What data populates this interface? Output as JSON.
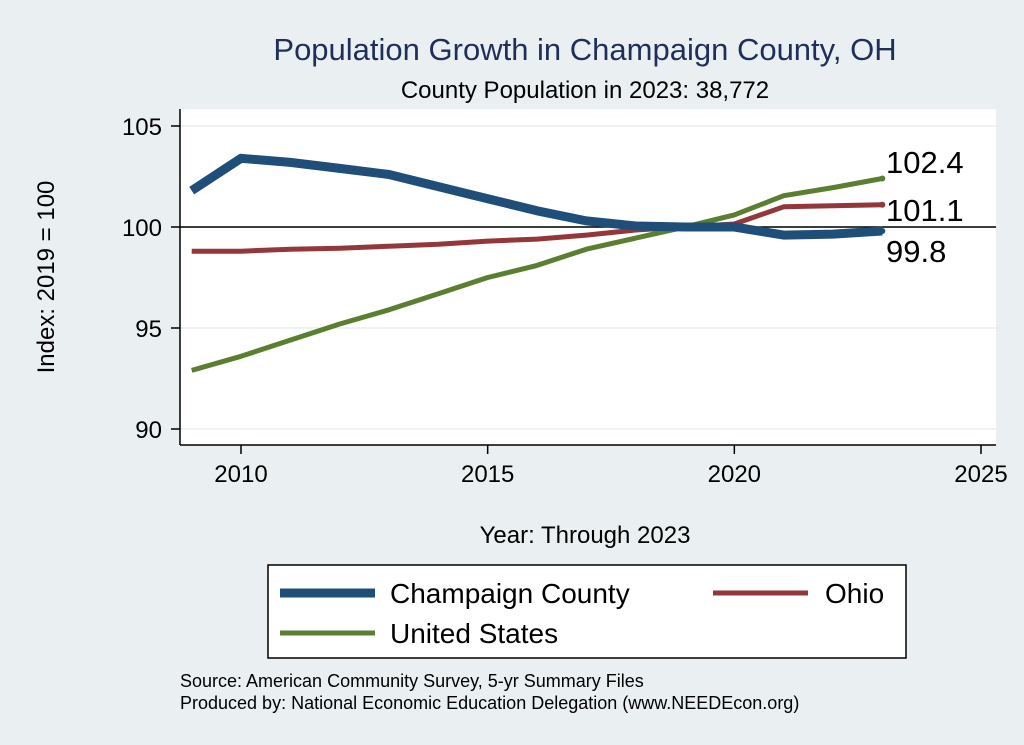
{
  "chart_data": {
    "type": "line",
    "title": "Population Growth in Champaign County, OH",
    "subtitle": "County Population in 2023: 38,772",
    "xlabel": "Year: Through 2023",
    "ylabel": "Index: 2019 = 100",
    "xlim": [
      2009,
      2025
    ],
    "ylim": [
      90,
      105
    ],
    "x_ticks": [
      2010,
      2015,
      2020,
      2025
    ],
    "y_ticks": [
      90,
      95,
      100,
      105
    ],
    "reference_line": 100,
    "x": [
      2009,
      2010,
      2011,
      2012,
      2013,
      2014,
      2015,
      2016,
      2017,
      2018,
      2019,
      2020,
      2021,
      2022,
      2023
    ],
    "series": [
      {
        "name": "Champaign  County",
        "color": "#1f4e79",
        "values": [
          101.8,
          103.4,
          103.2,
          102.9,
          102.6,
          102.0,
          101.4,
          100.8,
          100.3,
          100.05,
          100.0,
          100.0,
          99.6,
          99.65,
          99.8
        ],
        "end_label": "99.8"
      },
      {
        "name": "Ohio",
        "color": "#93373a",
        "values": [
          98.8,
          98.8,
          98.9,
          98.95,
          99.05,
          99.15,
          99.3,
          99.4,
          99.6,
          99.85,
          100.0,
          100.15,
          101.0,
          101.05,
          101.1
        ],
        "end_label": "101.1"
      },
      {
        "name": "United States",
        "color": "#5b7f30",
        "values": [
          92.9,
          93.6,
          94.4,
          95.2,
          95.9,
          96.7,
          97.5,
          98.1,
          98.9,
          99.45,
          100.0,
          100.6,
          101.55,
          101.95,
          102.4
        ],
        "end_label": "102.4"
      }
    ],
    "legend": [
      "Champaign  County",
      "Ohio",
      "United States"
    ],
    "legend_position": "bottom"
  },
  "source_lines": [
    "Source: American Community Survey, 5-yr Summary Files",
    "Produced by: National Economic Education Delegation (www.NEEDEcon.org)"
  ]
}
